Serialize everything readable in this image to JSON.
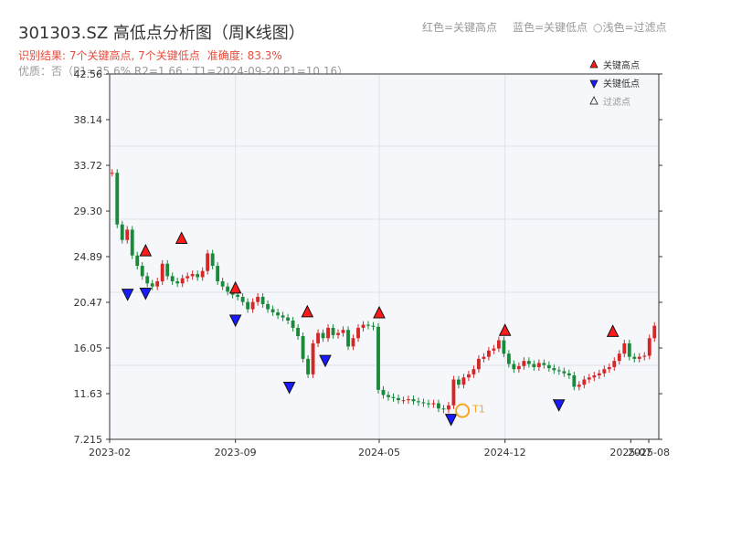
{
  "header": {
    "title": "301303.SZ 高低点分析图（周K线图）",
    "legend_red": "红色=关键高点",
    "legend_blue": "蓝色=关键低点",
    "legend_light": "○浅色=过滤点",
    "result": "识别结果: 7个关键高点, 7个关键低点",
    "accuracy": "准确度: 83.3%",
    "quality": "优质：否（P1=35.6%  R2=1.66 ; T1=2024-09-20 P1=10.16）"
  },
  "colors": {
    "up": "#d62728",
    "down": "#1a8a3a",
    "high_marker": "#ff1a1a",
    "low_marker": "#1a1aff",
    "t1_ring": "#f5a623",
    "grid": "#dde3ea",
    "plot_bg": "#f5f7fa"
  },
  "chart_data": {
    "type": "candlestick",
    "ylim": [
      7.215,
      42.56
    ],
    "y_ticks": [
      "7.215",
      "11.63",
      "16.05",
      "20.47",
      "24.89",
      "29.30",
      "33.72",
      "38.14",
      "42.56"
    ],
    "x_ticks": [
      "2023-02",
      "2023-09",
      "2024-05",
      "2024-12",
      "2025-07",
      "2025-08"
    ],
    "legend": [
      {
        "symbol": "triangle-up",
        "label": "关键高点"
      },
      {
        "symbol": "triangle-down",
        "label": "关键低点"
      },
      {
        "symbol": "triangle-up-outline",
        "label": "过滤点"
      }
    ],
    "key_highs": [
      {
        "date": "2023-04",
        "value": 24.7
      },
      {
        "date": "2023-06",
        "value": 25.9
      },
      {
        "date": "2023-09",
        "value": 21.1
      },
      {
        "date": "2024-01",
        "value": 18.8
      },
      {
        "date": "2024-05",
        "value": 18.7
      },
      {
        "date": "2024-12",
        "value": 17.0
      },
      {
        "date": "2025-06",
        "value": 16.9
      }
    ],
    "key_lows": [
      {
        "date": "2023-03",
        "value": 22.0
      },
      {
        "date": "2023-04",
        "value": 22.1
      },
      {
        "date": "2023-09",
        "value": 19.5
      },
      {
        "date": "2023-12",
        "value": 13.0
      },
      {
        "date": "2024-02",
        "value": 15.6
      },
      {
        "date": "2024-09",
        "value": 9.9
      },
      {
        "date": "2025-03",
        "value": 11.3
      }
    ],
    "t1_point": {
      "label": "T1",
      "date": "2024-09-20",
      "value": 10.16
    },
    "price_path": [
      33.0,
      28.0,
      26.5,
      27.5,
      25.0,
      24.0,
      23.0,
      22.3,
      22.0,
      22.5,
      24.2,
      23.0,
      22.5,
      22.3,
      22.8,
      23.0,
      23.2,
      22.9,
      23.5,
      25.2,
      24.0,
      22.5,
      22.0,
      21.5,
      21.2,
      21.0,
      20.5,
      19.8,
      20.5,
      21.0,
      20.3,
      19.8,
      19.5,
      19.2,
      19.0,
      18.7,
      18.0,
      17.2,
      15.0,
      13.5,
      16.5,
      17.5,
      17.0,
      18.0,
      17.3,
      17.5,
      17.8,
      16.2,
      17.0,
      18.0,
      18.3,
      18.2,
      18.1,
      12.0,
      11.5,
      11.3,
      11.2,
      11.0,
      11.0,
      11.1,
      10.9,
      10.8,
      10.7,
      10.6,
      10.7,
      10.2,
      10.1,
      10.5,
      13.0,
      12.5,
      13.2,
      13.5,
      14.0,
      15.0,
      15.2,
      15.8,
      16.0,
      16.8,
      15.5,
      14.5,
      14.0,
      14.3,
      14.8,
      14.5,
      14.2,
      14.6,
      14.4,
      14.1,
      13.9,
      13.8,
      13.6,
      13.4,
      12.3,
      12.5,
      13.0,
      13.2,
      13.4,
      13.6,
      14.0,
      14.2,
      14.8,
      15.5,
      16.5,
      15.2,
      15.0,
      15.2,
      15.3,
      17.0,
      18.2
    ]
  }
}
